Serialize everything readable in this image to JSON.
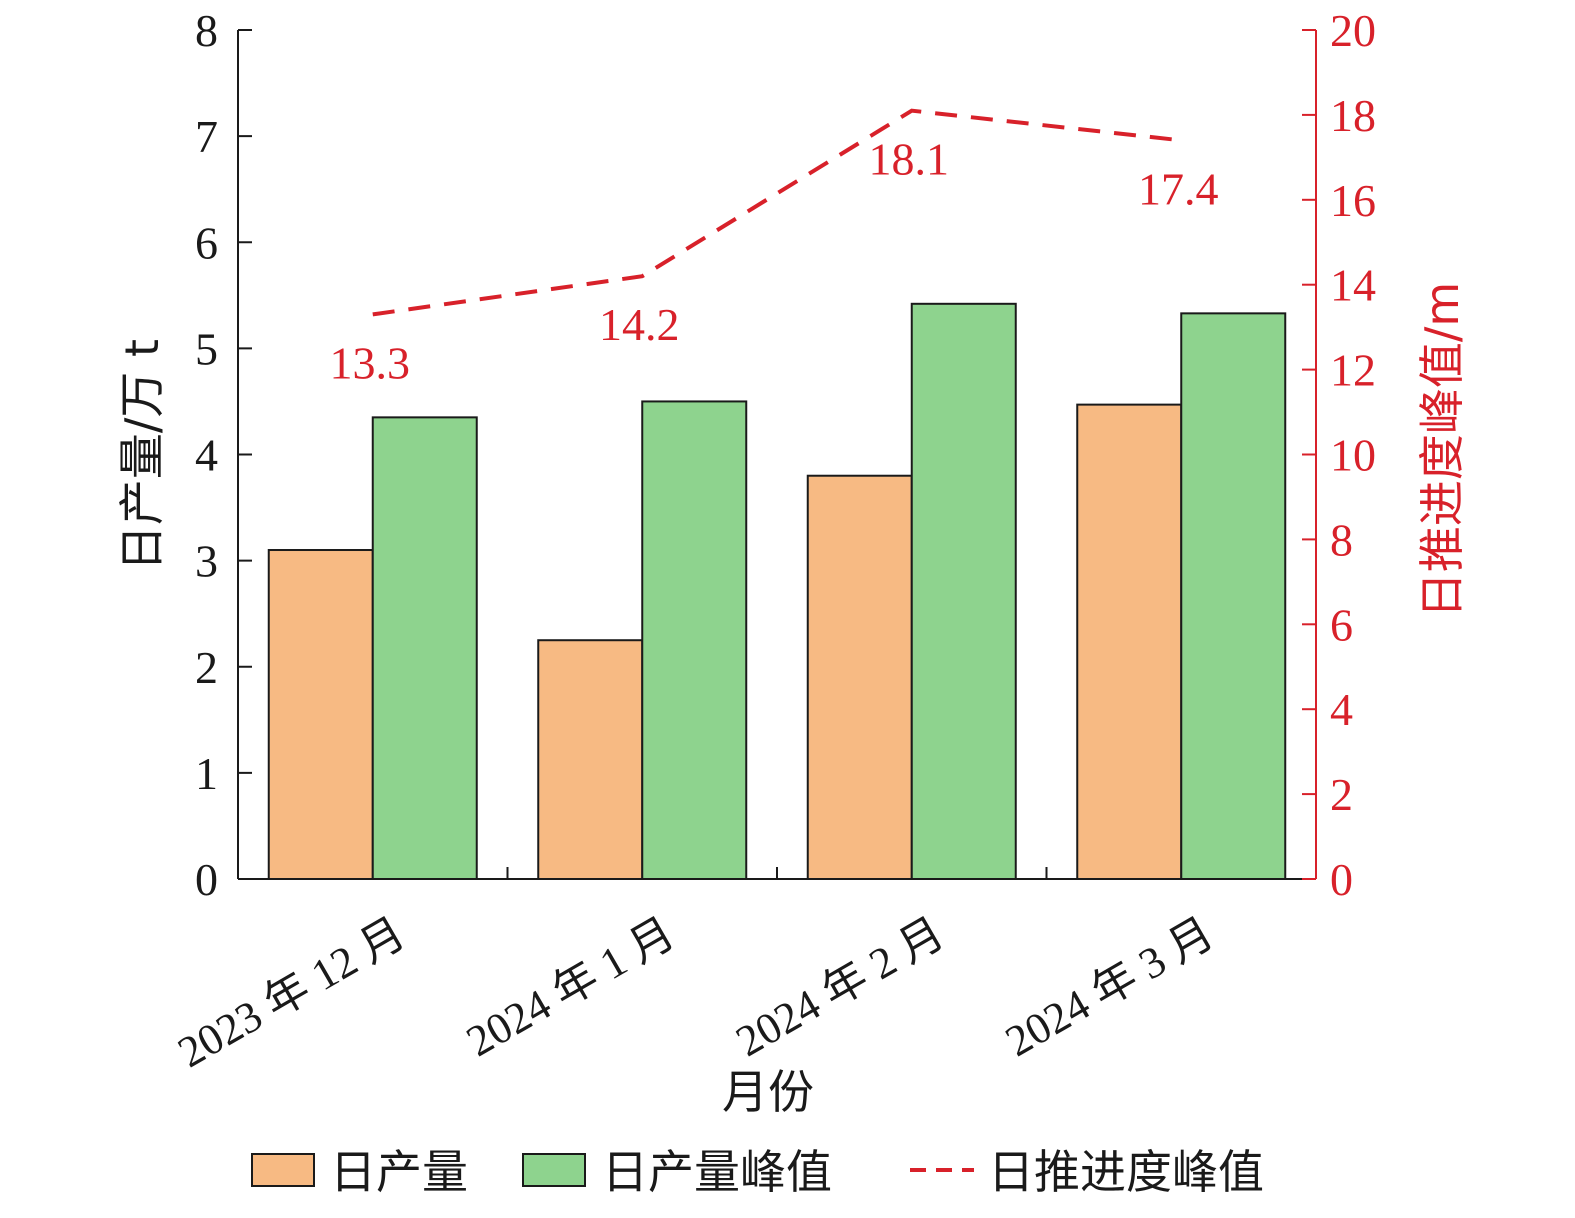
{
  "colors": {
    "bar_output": "#f7ba83",
    "bar_peak": "#8ed38e",
    "line": "#d8212a",
    "axis_left": "#1a1a1a",
    "axis_right": "#d8212a",
    "bar_stroke": "#1a1a1a"
  },
  "chart_data": {
    "type": "bar",
    "xlabel": "月份",
    "ylabel": "日产量/万 t",
    "y2label": "日推进度峰值/m",
    "categories": [
      "2023 年 12 月",
      "2024 年 1 月",
      "2024 年 2 月",
      "2024 年 3 月"
    ],
    "ylim": [
      0,
      8
    ],
    "yticks": [
      "0",
      "1",
      "2",
      "3",
      "4",
      "5",
      "6",
      "7",
      "8"
    ],
    "y2lim": [
      0,
      20
    ],
    "y2ticks": [
      "0",
      "2",
      "4",
      "6",
      "8",
      "10",
      "12",
      "14",
      "16",
      "18",
      "20"
    ],
    "legend_position": "bottom",
    "series": [
      {
        "name": "日产量",
        "type": "bar",
        "axis": "left",
        "values": [
          3.1,
          2.25,
          3.8,
          4.47
        ]
      },
      {
        "name": "日产量峰值",
        "type": "bar",
        "axis": "left",
        "values": [
          4.35,
          4.5,
          5.42,
          5.33
        ]
      },
      {
        "name": "日推进度峰值",
        "type": "line",
        "style": "dashed",
        "axis": "right",
        "values": [
          13.3,
          14.2,
          18.1,
          17.4
        ],
        "labels": [
          "13.3",
          "14.2",
          "18.1",
          "17.4"
        ]
      }
    ]
  }
}
